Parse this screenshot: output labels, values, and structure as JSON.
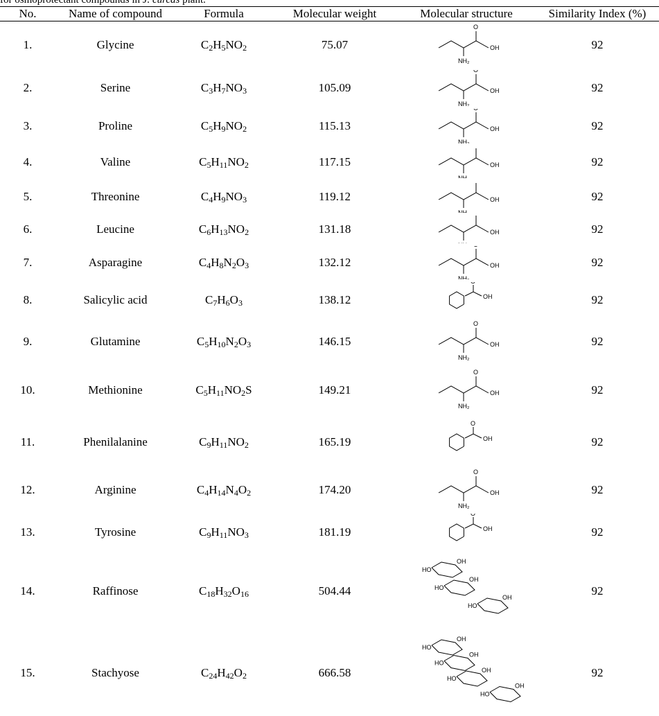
{
  "caption": {
    "prefix": "for osmoprotectant compounds in ",
    "species": "J. curcas",
    "suffix": " plant."
  },
  "table": {
    "headers": [
      "No.",
      "Name of compound",
      "Formula",
      "Molecular weight",
      "Molecular structure",
      "Similarity Index (%)"
    ],
    "rows": [
      {
        "no": "1.",
        "name": "Glycine",
        "formula": "C2H5NO2",
        "mw": "75.07",
        "structure_icon": "glycine-structure-icon",
        "similarity": "92",
        "height": 68
      },
      {
        "no": "2.",
        "name": "Serine",
        "formula": "C3H7NO3",
        "mw": "105.09",
        "structure_icon": "serine-structure-icon",
        "similarity": "92",
        "height": 56
      },
      {
        "no": "3.",
        "name": "Proline",
        "formula": "C5H9NO2",
        "mw": "115.13",
        "structure_icon": "proline-structure-icon",
        "similarity": "92",
        "height": 54
      },
      {
        "no": "4.",
        "name": "Valine",
        "formula": "C5H11NO2",
        "mw": "117.15",
        "structure_icon": "valine-structure-icon",
        "similarity": "92",
        "height": 50
      },
      {
        "no": "5.",
        "name": "Threonine",
        "formula": "C4H9NO3",
        "mw": "119.12",
        "structure_icon": "threonine-structure-icon",
        "similarity": "92",
        "height": 50
      },
      {
        "no": "6.",
        "name": "Leucine",
        "formula": "C6H13NO2",
        "mw": "131.18",
        "structure_icon": "leucine-structure-icon",
        "similarity": "92",
        "height": 44
      },
      {
        "no": "7.",
        "name": "Asparagine",
        "formula": "C4H8N2O3",
        "mw": "132.12",
        "structure_icon": "asparagine-structure-icon",
        "similarity": "92",
        "height": 52
      },
      {
        "no": "8.",
        "name": "Salicylic acid",
        "formula": "C7H6O3",
        "mw": "138.12",
        "structure_icon": "salicylic-acid-structure-icon",
        "similarity": "92",
        "height": 56
      },
      {
        "no": "9.",
        "name": "Glutamine",
        "formula": "C5H10N2O3",
        "mw": "146.15",
        "structure_icon": "glutamine-structure-icon",
        "similarity": "92",
        "height": 64
      },
      {
        "no": "10.",
        "name": "Methionine",
        "formula": "C5H11NO2S",
        "mw": "149.21",
        "structure_icon": "methionine-structure-icon",
        "similarity": "92",
        "height": 76
      },
      {
        "no": "11.",
        "name": "Phenilalanine",
        "formula": "C9H11NO2",
        "mw": "165.19",
        "structure_icon": "phenylalanine-structure-icon",
        "similarity": "92",
        "height": 74
      },
      {
        "no": "12.",
        "name": "Arginine",
        "formula": "C4H14N4O2",
        "mw": "174.20",
        "structure_icon": "arginine-structure-icon",
        "similarity": "92",
        "height": 64
      },
      {
        "no": "13.",
        "name": "Tyrosine",
        "formula": "C9H11NO3",
        "mw": "181.19",
        "structure_icon": "tyrosine-structure-icon",
        "similarity": "92",
        "height": 58
      },
      {
        "no": "14.",
        "name": "Raffinose",
        "formula": "C18H32O16",
        "mw": "504.44",
        "structure_icon": "raffinose-structure-icon",
        "similarity": "92",
        "height": 112
      },
      {
        "no": "15.",
        "name": "Stachyose",
        "formula": "C24H42O2",
        "mw": "666.58",
        "structure_icon": "stachyose-structure-icon",
        "similarity": "92",
        "height": 124
      }
    ]
  }
}
